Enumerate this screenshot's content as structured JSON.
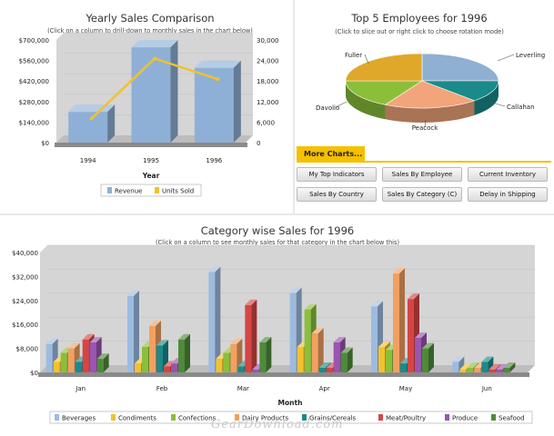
{
  "yearly": {
    "title": "Yearly Sales Comparison",
    "subtitle": "(Click on a column to drill-down to monthly sales in the chart below)",
    "left_ticks": [
      "$0",
      "$140,000",
      "$280,000",
      "$420,000",
      "$560,000",
      "$700,000"
    ],
    "right_ticks": [
      "0",
      "6,000",
      "12,000",
      "18,000",
      "24,000",
      "30,000"
    ],
    "legend": [
      "Revenue",
      "Units Sold"
    ]
  },
  "top5": {
    "title": "Top 5 Employees for 1996",
    "subtitle": "(Click to slice out or right click to choose rotation mode)"
  },
  "more_charts": {
    "tab_label": "More Charts...",
    "buttons": [
      "My Top Indicators",
      "Sales By Employee",
      "Current Inventory",
      "Sales By Country",
      "Sales By Category (C)",
      "Delay in Shipping"
    ]
  },
  "category": {
    "title": "Category wise Sales for 1996",
    "subtitle": "(Click on a column to see monthly sales for that category in the chart below this)",
    "y_ticks": [
      "$0",
      "$8,000",
      "$16,000",
      "$24,000",
      "$32,000",
      "$40,000"
    ]
  },
  "watermark": "GearDownload.com",
  "chart_data": [
    {
      "type": "bar",
      "title": "Yearly Sales Comparison",
      "xlabel": "Year",
      "ylabel": "",
      "categories": [
        "1994",
        "1995",
        "1996"
      ],
      "ylim": [
        0,
        700000
      ],
      "y2lim": [
        0,
        30000
      ],
      "series": [
        {
          "name": "Revenue",
          "type": "bar",
          "axis": "left",
          "values": [
            210000,
            650000,
            510000
          ],
          "color": "#8fb0d6"
        },
        {
          "name": "Units Sold",
          "type": "line",
          "axis": "right",
          "values": [
            6000,
            23500,
            17500
          ],
          "color": "#f2c12e"
        }
      ],
      "legend_position": "bottom"
    },
    {
      "type": "pie",
      "title": "Top 5 Employees for 1996",
      "slices": [
        {
          "label": "Leverling",
          "value": 25,
          "color": "#8fb0d0"
        },
        {
          "label": "Callahan",
          "value": 13,
          "color": "#1b8a8a"
        },
        {
          "label": "Peacock",
          "value": 20,
          "color": "#f2a57a"
        },
        {
          "label": "Davolio",
          "value": 17,
          "color": "#8bbf3a"
        },
        {
          "label": "Fuller",
          "value": 25,
          "color": "#e0a82a"
        }
      ]
    },
    {
      "type": "bar",
      "title": "Category wise Sales for 1996",
      "xlabel": "Month",
      "ylabel": "",
      "ylim": [
        0,
        40000
      ],
      "categories": [
        "Jan",
        "Feb",
        "Mar",
        "Apr",
        "May",
        "Jun"
      ],
      "series": [
        {
          "name": "Beverages",
          "color": "#9dbbe0",
          "values": [
            9500,
            25500,
            33500,
            26500,
            22000,
            3500
          ]
        },
        {
          "name": "Condiments",
          "color": "#f2c12e",
          "values": [
            3500,
            3000,
            4500,
            8500,
            8500,
            1000
          ]
        },
        {
          "name": "Confections",
          "color": "#8bbf3a",
          "values": [
            6500,
            8500,
            6500,
            21000,
            7500,
            1500
          ]
        },
        {
          "name": "Dairy Products",
          "color": "#f2a060",
          "values": [
            8000,
            15500,
            9500,
            13000,
            33000,
            1500
          ]
        },
        {
          "name": "Grains/Cereals",
          "color": "#1b8a8a",
          "values": [
            3500,
            9000,
            2000,
            1500,
            3000,
            3500
          ]
        },
        {
          "name": "Meat/Poultry",
          "color": "#d64545",
          "values": [
            11000,
            2000,
            22500,
            1500,
            24500,
            1000
          ]
        },
        {
          "name": "Produce",
          "color": "#9a55b0",
          "values": [
            10000,
            3000,
            1000,
            10000,
            11500,
            1000
          ]
        },
        {
          "name": "Seafood",
          "color": "#4f8a3a",
          "values": [
            4500,
            11000,
            10000,
            6500,
            8000,
            1500
          ]
        }
      ],
      "legend_position": "bottom"
    }
  ]
}
